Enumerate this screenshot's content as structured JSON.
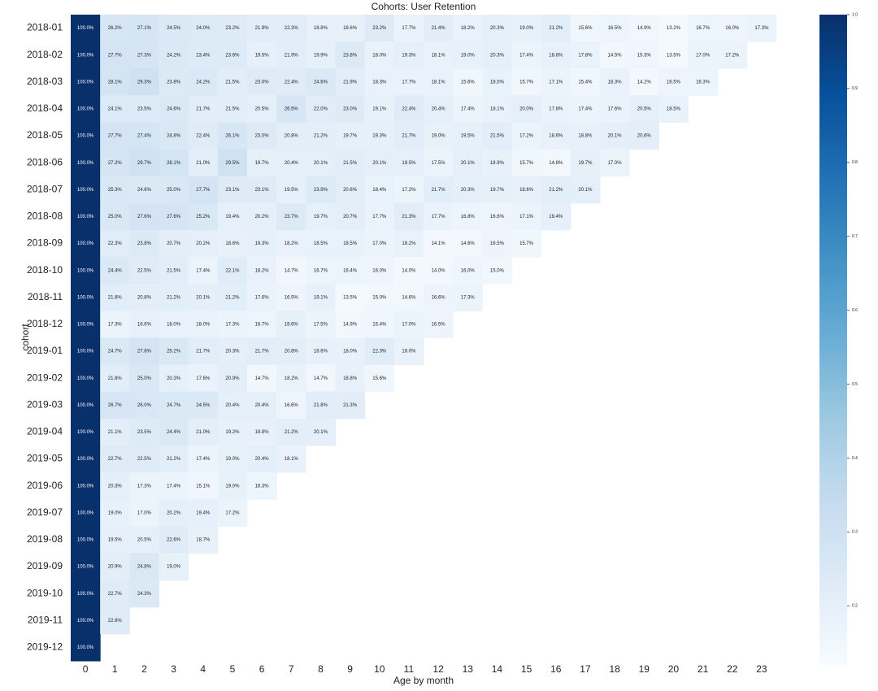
{
  "chart_data": {
    "type": "heatmap",
    "title": "Cohorts: User Retention",
    "xlabel": "Age by month",
    "ylabel": "cohort",
    "rows": [
      "2018-01",
      "2018-02",
      "2018-03",
      "2018-04",
      "2018-05",
      "2018-06",
      "2018-07",
      "2018-08",
      "2018-09",
      "2018-10",
      "2018-11",
      "2018-12",
      "2019-01",
      "2019-02",
      "2019-03",
      "2019-04",
      "2019-05",
      "2019-06",
      "2019-07",
      "2019-08",
      "2019-09",
      "2019-10",
      "2019-11",
      "2019-12"
    ],
    "columns": [
      0,
      1,
      2,
      3,
      4,
      5,
      6,
      7,
      8,
      9,
      10,
      11,
      12,
      13,
      14,
      15,
      16,
      17,
      18,
      19,
      20,
      21,
      22,
      23
    ],
    "values": [
      [
        1,
        0.262,
        0.271,
        0.245,
        0.24,
        0.232,
        0.219,
        0.223,
        0.188,
        0.186,
        0.232,
        0.177,
        0.214,
        0.182,
        0.203,
        0.19,
        0.212,
        0.156,
        0.165,
        0.149,
        0.132,
        0.167,
        0.16,
        0.173
      ],
      [
        1,
        0.277,
        0.273,
        0.242,
        0.234,
        0.236,
        0.195,
        0.219,
        0.199,
        0.238,
        0.18,
        0.193,
        0.181,
        0.19,
        0.203,
        0.174,
        0.188,
        0.178,
        0.145,
        0.153,
        0.135,
        0.17,
        0.172
      ],
      [
        1,
        0.281,
        0.293,
        0.238,
        0.242,
        0.215,
        0.23,
        0.224,
        0.246,
        0.219,
        0.183,
        0.177,
        0.181,
        0.156,
        0.185,
        0.157,
        0.171,
        0.154,
        0.183,
        0.142,
        0.165,
        0.163
      ],
      [
        1,
        0.241,
        0.235,
        0.246,
        0.217,
        0.215,
        0.205,
        0.265,
        0.22,
        0.23,
        0.191,
        0.224,
        0.204,
        0.174,
        0.181,
        0.2,
        0.178,
        0.174,
        0.176,
        0.205,
        0.185
      ],
      [
        1,
        0.277,
        0.274,
        0.248,
        0.224,
        0.261,
        0.23,
        0.208,
        0.212,
        0.197,
        0.193,
        0.217,
        0.19,
        0.195,
        0.215,
        0.172,
        0.186,
        0.188,
        0.201,
        0.206
      ],
      [
        1,
        0.272,
        0.297,
        0.281,
        0.21,
        0.295,
        0.197,
        0.204,
        0.201,
        0.215,
        0.201,
        0.195,
        0.175,
        0.201,
        0.189,
        0.157,
        0.148,
        0.197,
        0.17
      ],
      [
        1,
        0.253,
        0.246,
        0.25,
        0.277,
        0.231,
        0.231,
        0.195,
        0.239,
        0.206,
        0.184,
        0.172,
        0.217,
        0.203,
        0.197,
        0.186,
        0.212,
        0.201
      ],
      [
        1,
        0.25,
        0.276,
        0.276,
        0.252,
        0.194,
        0.202,
        0.237,
        0.197,
        0.207,
        0.177,
        0.213,
        0.177,
        0.168,
        0.166,
        0.171,
        0.194
      ],
      [
        1,
        0.223,
        0.238,
        0.207,
        0.202,
        0.186,
        0.193,
        0.182,
        0.185,
        0.185,
        0.17,
        0.182,
        0.141,
        0.146,
        0.165,
        0.157
      ],
      [
        1,
        0.244,
        0.225,
        0.215,
        0.174,
        0.221,
        0.182,
        0.147,
        0.167,
        0.164,
        0.16,
        0.14,
        0.14,
        0.16,
        0.15
      ],
      [
        1,
        0.218,
        0.208,
        0.212,
        0.201,
        0.212,
        0.176,
        0.165,
        0.191,
        0.135,
        0.15,
        0.146,
        0.166,
        0.173
      ],
      [
        1,
        0.173,
        0.186,
        0.18,
        0.18,
        0.173,
        0.167,
        0.196,
        0.175,
        0.149,
        0.154,
        0.17,
        0.165
      ],
      [
        1,
        0.247,
        0.278,
        0.252,
        0.217,
        0.203,
        0.217,
        0.208,
        0.186,
        0.18,
        0.223,
        0.18
      ],
      [
        1,
        0.218,
        0.25,
        0.203,
        0.176,
        0.209,
        0.147,
        0.182,
        0.147,
        0.188,
        0.156
      ],
      [
        1,
        0.267,
        0.26,
        0.247,
        0.245,
        0.204,
        0.204,
        0.166,
        0.218,
        0.213
      ],
      [
        1,
        0.211,
        0.235,
        0.244,
        0.21,
        0.192,
        0.188,
        0.212,
        0.201
      ],
      [
        1,
        0.227,
        0.225,
        0.212,
        0.174,
        0.19,
        0.204,
        0.181
      ],
      [
        1,
        0.203,
        0.173,
        0.174,
        0.151,
        0.19,
        0.163
      ],
      [
        1,
        0.19,
        0.17,
        0.202,
        0.194,
        0.172
      ],
      [
        1,
        0.195,
        0.205,
        0.226,
        0.187
      ],
      [
        1,
        0.209,
        0.248,
        0.19
      ],
      [
        1,
        0.227,
        0.243
      ],
      [
        1,
        0.226
      ],
      [
        1
      ]
    ],
    "value_labels": [
      [
        "100.0%",
        "26.2%",
        "27.1%",
        "24.5%",
        "24.0%",
        "23.2%",
        "21.9%",
        "22.3%",
        "18.8%",
        "18.6%",
        "23.2%",
        "17.7%",
        "21.4%",
        "18.2%",
        "20.3%",
        "19.0%",
        "21.2%",
        "15.6%",
        "16.5%",
        "14.9%",
        "13.2%",
        "16.7%",
        "16.0%",
        "17.3%"
      ],
      [
        "100.0%",
        "27.7%",
        "27.3%",
        "24.2%",
        "23.4%",
        "23.6%",
        "19.5%",
        "21.9%",
        "19.9%",
        "23.8%",
        "18.0%",
        "19.3%",
        "18.1%",
        "19.0%",
        "20.3%",
        "17.4%",
        "18.8%",
        "17.8%",
        "14.5%",
        "15.3%",
        "13.5%",
        "17.0%",
        "17.2%"
      ],
      [
        "100.0%",
        "28.1%",
        "29.3%",
        "23.8%",
        "24.2%",
        "21.5%",
        "23.0%",
        "22.4%",
        "24.6%",
        "21.9%",
        "18.3%",
        "17.7%",
        "18.1%",
        "15.6%",
        "18.5%",
        "15.7%",
        "17.1%",
        "15.4%",
        "18.3%",
        "14.2%",
        "16.5%",
        "16.3%"
      ],
      [
        "100.0%",
        "24.1%",
        "23.5%",
        "24.6%",
        "21.7%",
        "21.5%",
        "20.5%",
        "26.5%",
        "22.0%",
        "23.0%",
        "19.1%",
        "22.4%",
        "20.4%",
        "17.4%",
        "18.1%",
        "20.0%",
        "17.8%",
        "17.4%",
        "17.6%",
        "20.5%",
        "18.5%"
      ],
      [
        "100.0%",
        "27.7%",
        "27.4%",
        "24.8%",
        "22.4%",
        "26.1%",
        "23.0%",
        "20.8%",
        "21.2%",
        "19.7%",
        "19.3%",
        "21.7%",
        "19.0%",
        "19.5%",
        "21.5%",
        "17.2%",
        "18.6%",
        "18.8%",
        "20.1%",
        "20.6%"
      ],
      [
        "100.0%",
        "27.2%",
        "29.7%",
        "28.1%",
        "21.0%",
        "29.5%",
        "19.7%",
        "20.4%",
        "20.1%",
        "21.5%",
        "20.1%",
        "19.5%",
        "17.5%",
        "20.1%",
        "18.9%",
        "15.7%",
        "14.8%",
        "19.7%",
        "17.0%"
      ],
      [
        "100.0%",
        "25.3%",
        "24.6%",
        "25.0%",
        "27.7%",
        "23.1%",
        "23.1%",
        "19.5%",
        "23.9%",
        "20.6%",
        "18.4%",
        "17.2%",
        "21.7%",
        "20.3%",
        "19.7%",
        "18.6%",
        "21.2%",
        "20.1%"
      ],
      [
        "100.0%",
        "25.0%",
        "27.6%",
        "27.6%",
        "25.2%",
        "19.4%",
        "20.2%",
        "23.7%",
        "19.7%",
        "20.7%",
        "17.7%",
        "21.3%",
        "17.7%",
        "16.8%",
        "16.6%",
        "17.1%",
        "19.4%"
      ],
      [
        "100.0%",
        "22.3%",
        "23.8%",
        "20.7%",
        "20.2%",
        "18.6%",
        "19.3%",
        "18.2%",
        "18.5%",
        "18.5%",
        "17.0%",
        "18.2%",
        "14.1%",
        "14.6%",
        "16.5%",
        "15.7%"
      ],
      [
        "100.0%",
        "24.4%",
        "22.5%",
        "21.5%",
        "17.4%",
        "22.1%",
        "18.2%",
        "14.7%",
        "16.7%",
        "16.4%",
        "16.0%",
        "14.0%",
        "14.0%",
        "16.0%",
        "15.0%"
      ],
      [
        "100.0%",
        "21.8%",
        "20.8%",
        "21.2%",
        "20.1%",
        "21.2%",
        "17.6%",
        "16.5%",
        "19.1%",
        "13.5%",
        "15.0%",
        "14.6%",
        "16.6%",
        "17.3%"
      ],
      [
        "100.0%",
        "17.3%",
        "18.6%",
        "18.0%",
        "18.0%",
        "17.3%",
        "16.7%",
        "19.6%",
        "17.5%",
        "14.9%",
        "15.4%",
        "17.0%",
        "16.5%"
      ],
      [
        "100.0%",
        "24.7%",
        "27.8%",
        "25.2%",
        "21.7%",
        "20.3%",
        "21.7%",
        "20.8%",
        "18.6%",
        "18.0%",
        "22.3%",
        "18.0%"
      ],
      [
        "100.0%",
        "21.8%",
        "25.0%",
        "20.3%",
        "17.6%",
        "20.9%",
        "14.7%",
        "18.2%",
        "14.7%",
        "18.8%",
        "15.6%"
      ],
      [
        "100.0%",
        "26.7%",
        "26.0%",
        "24.7%",
        "24.5%",
        "20.4%",
        "20.4%",
        "16.6%",
        "21.8%",
        "21.3%"
      ],
      [
        "100.0%",
        "21.1%",
        "23.5%",
        "24.4%",
        "21.0%",
        "19.2%",
        "18.8%",
        "21.2%",
        "20.1%"
      ],
      [
        "100.0%",
        "22.7%",
        "22.5%",
        "21.2%",
        "17.4%",
        "19.0%",
        "20.4%",
        "18.1%"
      ],
      [
        "100.0%",
        "20.3%",
        "17.3%",
        "17.4%",
        "15.1%",
        "19.0%",
        "16.3%"
      ],
      [
        "100.0%",
        "19.0%",
        "17.0%",
        "20.2%",
        "19.4%",
        "17.2%"
      ],
      [
        "100.0%",
        "19.5%",
        "20.5%",
        "22.6%",
        "18.7%"
      ],
      [
        "100.0%",
        "20.9%",
        "24.8%",
        "19.0%"
      ],
      [
        "100.0%",
        "22.7%",
        "24.3%"
      ],
      [
        "100.0%",
        "22.6%"
      ],
      [
        "100.0%"
      ]
    ],
    "colormap": "Blues",
    "zlim": [
      0.12,
      1
    ],
    "zticks": [
      0.2,
      0.3,
      0.4,
      0.5,
      0.6,
      0.7,
      0.8,
      0.9,
      {
        "value": 1,
        "label": "1.0"
      }
    ]
  }
}
